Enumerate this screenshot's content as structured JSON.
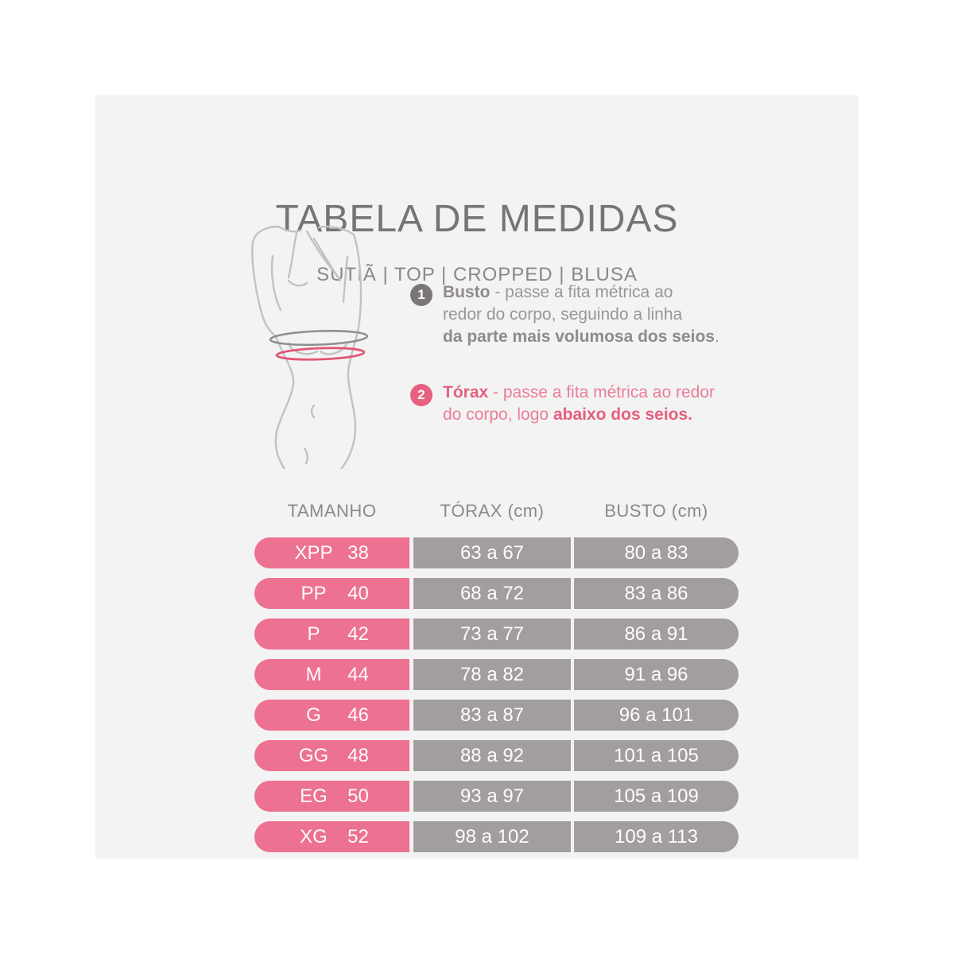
{
  "colors": {
    "canvas_bg": "#f3f3f4",
    "title_gray": "#767476",
    "subtitle_gray": "#8b8789",
    "instr_gray": "#9b9596",
    "instr_gray_bold": "#8f8a8c",
    "pink_text": "#ea7e95",
    "pink_bold": "#e6607f",
    "badge1_bg": "#7b7778",
    "badge2_bg": "#e6607f",
    "pink_cell": "#ed7190",
    "gray_cell": "#a39e9e",
    "header_gray": "#8d8889",
    "cell_text": "#fdfcfc"
  },
  "header": {
    "title": "TABELA DE MEDIDAS",
    "subtitle": "SUTIÃ | TOP | CROPPED | BLUSA"
  },
  "figure": {
    "description": "female-torso-line-art-with-measure-rings",
    "line_color": "#c2c2c2",
    "busto_ring_color": "#8f8f8f",
    "torax_ring_color": "#e25672"
  },
  "instructions": [
    {
      "number": "1",
      "lines": [
        [
          {
            "text": "Busto",
            "bold": true
          },
          {
            "text": " - passe a fita métrica ao",
            "bold": false
          }
        ],
        [
          {
            "text": "redor do corpo, seguindo a linha",
            "bold": false
          }
        ],
        [
          {
            "text": "da parte mais volumosa dos seios",
            "bold": true
          },
          {
            "text": ".",
            "bold": false
          }
        ]
      ]
    },
    {
      "number": "2",
      "lines": [
        [
          {
            "text": "Tórax",
            "bold": true
          },
          {
            "text": " - passe a fita métrica ao redor",
            "bold": false
          }
        ],
        [
          {
            "text": "do corpo, logo ",
            "bold": false
          },
          {
            "text": "abaixo dos seios.",
            "bold": true
          }
        ]
      ]
    }
  ],
  "table": {
    "columns": [
      "TAMANHO",
      "TÓRAX (cm)",
      "BUSTO (cm)"
    ],
    "rows": [
      {
        "size_label": "XPP",
        "size_number": "38",
        "torax": "63 a 67",
        "busto": "80 a 83"
      },
      {
        "size_label": "PP",
        "size_number": "40",
        "torax": "68 a 72",
        "busto": "83 a 86"
      },
      {
        "size_label": "P",
        "size_number": "42",
        "torax": "73 a 77",
        "busto": "86 a 91"
      },
      {
        "size_label": "M",
        "size_number": "44",
        "torax": "78 a 82",
        "busto": "91 a 96"
      },
      {
        "size_label": "G",
        "size_number": "46",
        "torax": "83 a 87",
        "busto": "96 a 101"
      },
      {
        "size_label": "GG",
        "size_number": "48",
        "torax": "88 a 92",
        "busto": "101 a 105"
      },
      {
        "size_label": "EG",
        "size_number": "50",
        "torax": "93 a 97",
        "busto": "105 a 109"
      },
      {
        "size_label": "XG",
        "size_number": "52",
        "torax": "98 a 102",
        "busto": "109 a 113"
      }
    ],
    "row_top_start": 556,
    "row_pitch": 51
  }
}
